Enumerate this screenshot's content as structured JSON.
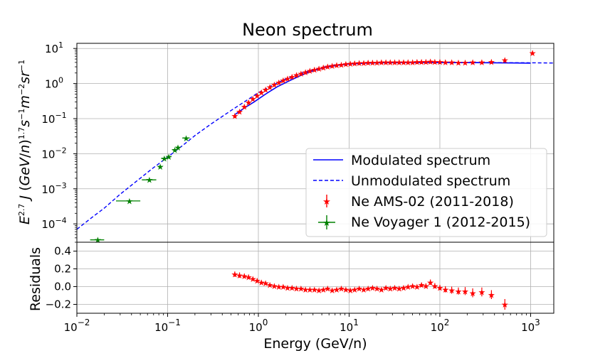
{
  "chart_data": [
    {
      "type": "scatter",
      "title": "Neon spectrum",
      "ylabel_html": "E^2.7 J (GeV/n)^1.7 s^-1 m^-2 sr^-1",
      "xscale": "log",
      "yscale": "log",
      "xlim": [
        0.01,
        1800
      ],
      "ylim": [
        3e-05,
        14
      ],
      "xticks": [
        {
          "base": "10",
          "exp": "−2"
        },
        {
          "base": "10",
          "exp": "−1"
        },
        {
          "base": "10",
          "exp": "0"
        },
        {
          "base": "10",
          "exp": "1"
        },
        {
          "base": "10",
          "exp": "2"
        },
        {
          "base": "10",
          "exp": "3"
        }
      ],
      "yticks": [
        {
          "base": "10",
          "exp": "1"
        },
        {
          "base": "10",
          "exp": "0"
        },
        {
          "base": "10",
          "exp": "−1"
        },
        {
          "base": "10",
          "exp": "−2"
        },
        {
          "base": "10",
          "exp": "−3"
        },
        {
          "base": "10",
          "exp": "−4"
        }
      ],
      "grid": true,
      "legend_position": "lower-right",
      "series": [
        {
          "name": "Modulated spectrum",
          "style": "solid-line",
          "color": "#0000ff",
          "x": [
            0.55,
            0.7,
            0.9,
            1.2,
            1.6,
            2.2,
            3,
            4,
            5.5,
            7.5,
            10,
            15,
            20,
            30,
            50,
            80,
            120,
            200,
            400,
            700,
            1000
          ],
          "y": [
            0.13,
            0.2,
            0.3,
            0.5,
            0.8,
            1.2,
            1.75,
            2.3,
            2.9,
            3.3,
            3.6,
            3.8,
            3.9,
            3.95,
            4.0,
            4.0,
            3.98,
            3.96,
            3.9,
            3.85,
            3.8
          ]
        },
        {
          "name": "Unmodulated spectrum",
          "style": "dashed-line",
          "color": "#0000ff",
          "x": [
            0.01,
            0.015,
            0.02,
            0.03,
            0.05,
            0.07,
            0.1,
            0.15,
            0.2,
            0.3,
            0.5,
            0.7,
            1,
            1.5,
            2,
            3,
            5,
            7,
            10,
            20,
            50,
            100,
            300,
            1000,
            1800
          ],
          "y": [
            7e-05,
            0.00016,
            0.00028,
            0.0007,
            0.002,
            0.004,
            0.008,
            0.018,
            0.033,
            0.07,
            0.17,
            0.3,
            0.55,
            0.95,
            1.35,
            2.0,
            2.9,
            3.4,
            3.7,
            3.95,
            4.0,
            3.98,
            3.95,
            3.9,
            3.85
          ]
        },
        {
          "name": "Ne AMS-02 (2011-2018)",
          "style": "star-markers",
          "color": "#ff0000",
          "x": [
            0.55,
            0.62,
            0.7,
            0.78,
            0.87,
            0.97,
            1.08,
            1.2,
            1.34,
            1.5,
            1.68,
            1.88,
            2.1,
            2.35,
            2.63,
            2.95,
            3.3,
            3.7,
            4.15,
            4.65,
            5.2,
            5.8,
            6.5,
            7.3,
            8.2,
            9.2,
            10.3,
            11.5,
            12.9,
            14.5,
            16.2,
            18.1,
            20.3,
            22.7,
            25.4,
            28.4,
            31.8,
            35.6,
            39.8,
            44.6,
            50,
            56,
            62.7,
            70.2,
            78.6,
            88,
            100,
            115,
            135,
            160,
            190,
            230,
            290,
            370,
            520,
            1050
          ],
          "y": [
            0.12,
            0.16,
            0.22,
            0.29,
            0.37,
            0.46,
            0.56,
            0.67,
            0.8,
            0.94,
            1.08,
            1.23,
            1.4,
            1.56,
            1.74,
            1.92,
            2.1,
            2.3,
            2.5,
            2.7,
            2.88,
            3.05,
            3.2,
            3.35,
            3.48,
            3.6,
            3.7,
            3.78,
            3.85,
            3.9,
            3.95,
            4.0,
            4.02,
            4.04,
            4.05,
            4.06,
            4.07,
            4.08,
            4.09,
            4.1,
            4.1,
            4.12,
            4.15,
            4.2,
            4.25,
            4.2,
            4.15,
            4.1,
            4.05,
            4.0,
            4.0,
            4.05,
            4.1,
            4.2,
            4.7,
            7.5
          ]
        },
        {
          "name": "Ne Voyager 1 (2012-2015)",
          "style": "star-markers-xerr",
          "color": "#008000",
          "x": [
            0.017,
            0.038,
            0.063,
            0.083,
            0.092,
            0.103,
            0.12,
            0.13,
            0.16
          ],
          "x_low": [
            0.014,
            0.027,
            0.052,
            0.078,
            0.085,
            0.097,
            0.112,
            0.125,
            0.145
          ],
          "x_high": [
            0.02,
            0.05,
            0.075,
            0.088,
            0.099,
            0.11,
            0.128,
            0.138,
            0.175
          ],
          "y": [
            3.5e-05,
            0.00045,
            0.0018,
            0.0043,
            0.0073,
            0.0082,
            0.013,
            0.015,
            0.028
          ]
        }
      ]
    },
    {
      "type": "scatter",
      "ylabel": "Residuals",
      "xlabel": "Energy (GeV/n)",
      "xscale": "log",
      "xlim": [
        0.01,
        1800
      ],
      "ylim": [
        -0.3,
        0.5
      ],
      "yticks": [
        "0.4",
        "0.2",
        "0.0",
        "−0.2"
      ],
      "yticks_values": [
        0.4,
        0.2,
        0.0,
        -0.2
      ],
      "grid": true,
      "series": [
        {
          "name": "Residuals",
          "style": "star-markers-yerr",
          "color": "#ff0000",
          "x": [
            0.55,
            0.62,
            0.7,
            0.78,
            0.87,
            0.97,
            1.08,
            1.2,
            1.34,
            1.5,
            1.68,
            1.88,
            2.1,
            2.35,
            2.63,
            2.95,
            3.3,
            3.7,
            4.15,
            4.65,
            5.2,
            5.8,
            6.5,
            7.3,
            8.2,
            9.2,
            10.3,
            11.5,
            12.9,
            14.5,
            16.2,
            18.1,
            20.3,
            22.7,
            25.4,
            28.4,
            31.8,
            35.6,
            39.8,
            44.6,
            50,
            56,
            62.7,
            70.2,
            78.6,
            88,
            100,
            115,
            135,
            160,
            190,
            230,
            290,
            370,
            520
          ],
          "y": [
            0.14,
            0.13,
            0.12,
            0.11,
            0.09,
            0.07,
            0.05,
            0.04,
            0.02,
            0.01,
            0.0,
            0.0,
            -0.01,
            -0.01,
            -0.02,
            -0.02,
            -0.03,
            -0.03,
            -0.03,
            -0.04,
            -0.03,
            -0.02,
            -0.04,
            -0.03,
            -0.02,
            -0.03,
            -0.04,
            -0.03,
            -0.02,
            -0.03,
            -0.02,
            -0.01,
            -0.02,
            -0.03,
            -0.01,
            -0.02,
            -0.01,
            -0.02,
            -0.01,
            0.0,
            0.01,
            0.0,
            0.02,
            0.01,
            0.05,
            0.01,
            -0.01,
            -0.03,
            -0.04,
            -0.05,
            -0.05,
            -0.07,
            -0.06,
            -0.09,
            -0.2
          ],
          "err": [
            0.03,
            0.03,
            0.025,
            0.025,
            0.02,
            0.02,
            0.02,
            0.02,
            0.02,
            0.02,
            0.015,
            0.015,
            0.015,
            0.015,
            0.015,
            0.015,
            0.015,
            0.015,
            0.015,
            0.015,
            0.015,
            0.015,
            0.015,
            0.015,
            0.015,
            0.015,
            0.015,
            0.015,
            0.015,
            0.015,
            0.015,
            0.015,
            0.015,
            0.015,
            0.015,
            0.015,
            0.02,
            0.02,
            0.02,
            0.02,
            0.02,
            0.02,
            0.025,
            0.025,
            0.03,
            0.03,
            0.03,
            0.035,
            0.04,
            0.04,
            0.045,
            0.05,
            0.05,
            0.05,
            0.06
          ]
        }
      ]
    }
  ]
}
